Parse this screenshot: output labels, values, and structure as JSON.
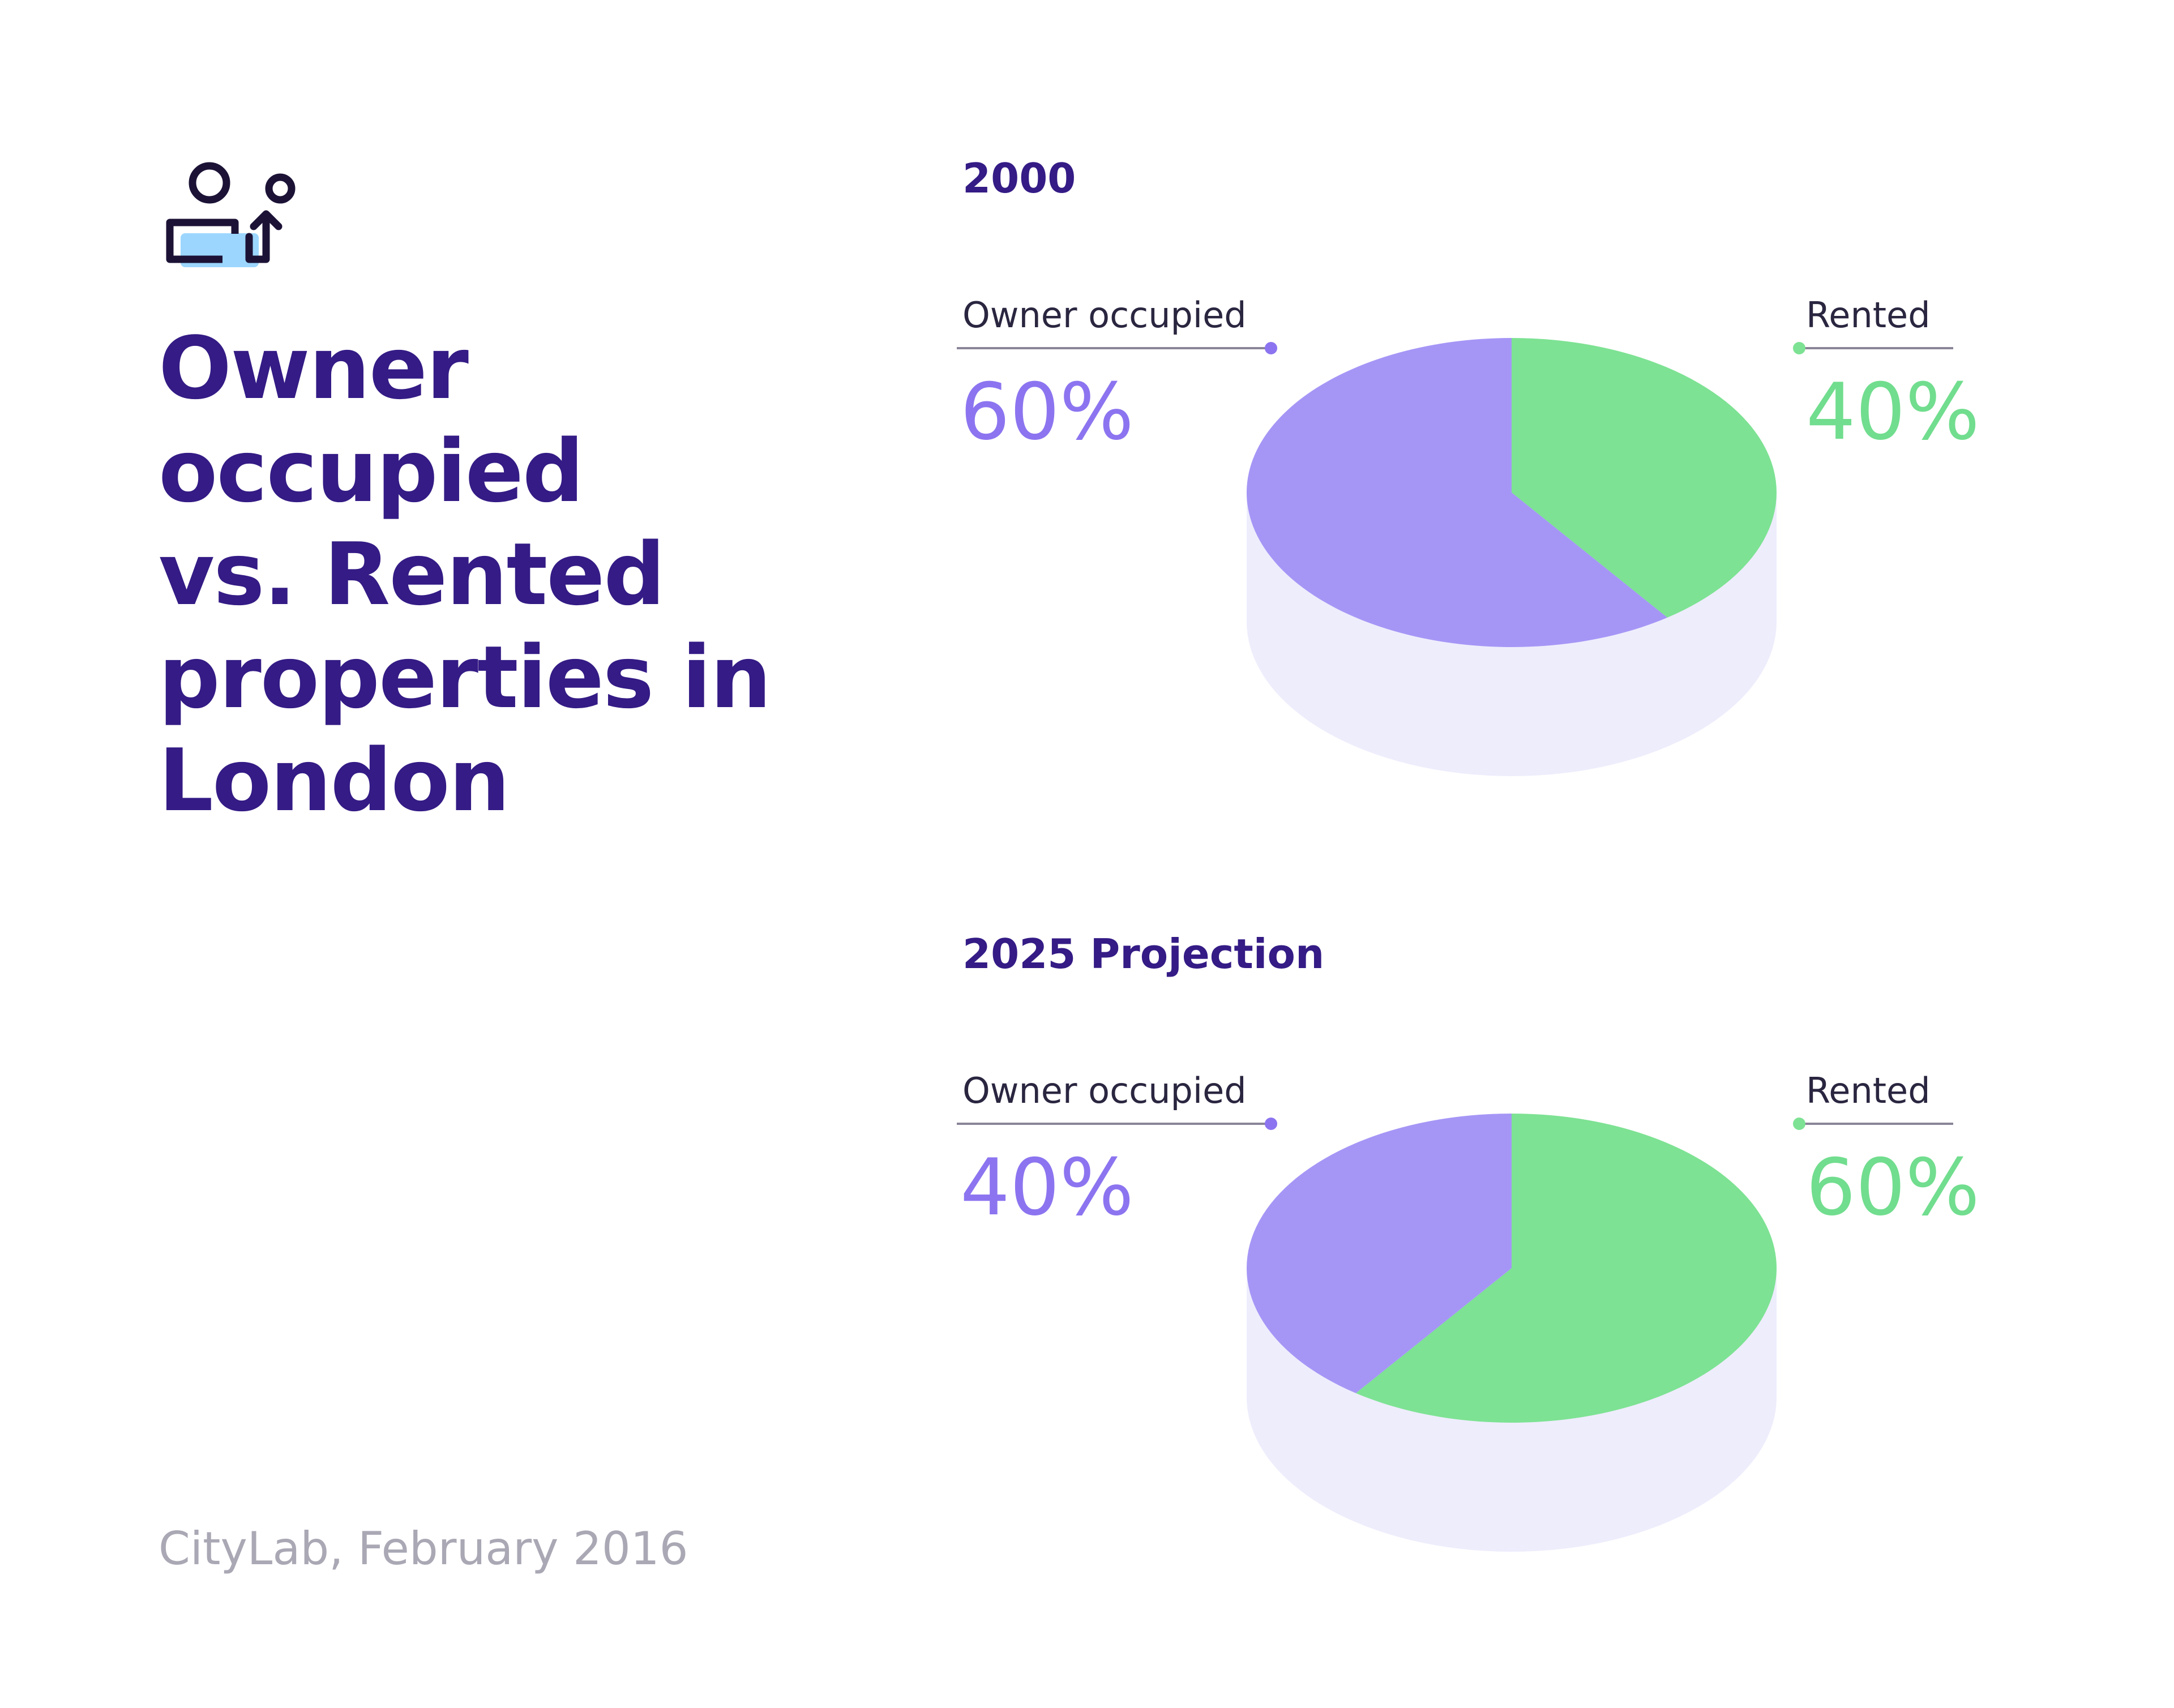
{
  "page": {
    "title_lines": [
      "Owner",
      "occupied",
      "vs. Rented",
      "properties in",
      "London"
    ],
    "source": "CityLab, February 2016",
    "icon": "user-transfer-icon"
  },
  "colors": {
    "title": "#341b85",
    "owner": "#a596f6",
    "owner_text": "#8c74f0",
    "rented": "#7de293",
    "rented_text": "#71dd8e",
    "side": "#eeedfc",
    "leader_line": "#8a8598",
    "label_text": "#2a2640",
    "source_text": "#a9a8b4"
  },
  "chart_data": [
    {
      "type": "pie",
      "title": "2000",
      "series": [
        {
          "name": "Owner occupied",
          "value": 60,
          "label": "60%",
          "color": "#a596f6"
        },
        {
          "name": "Rented",
          "value": 40,
          "label": "40%",
          "color": "#7de293"
        }
      ]
    },
    {
      "type": "pie",
      "title": "2025 Projection",
      "series": [
        {
          "name": "Owner occupied",
          "value": 40,
          "label": "40%",
          "color": "#a596f6"
        },
        {
          "name": "Rented",
          "value": 60,
          "label": "60%",
          "color": "#7de293"
        }
      ]
    }
  ]
}
